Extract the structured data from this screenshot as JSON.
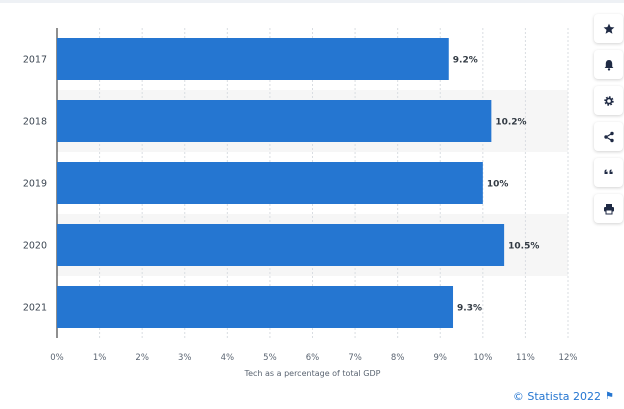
{
  "chart_data": {
    "type": "bar",
    "orientation": "horizontal",
    "categories": [
      "2017",
      "2018",
      "2019",
      "2020",
      "2021"
    ],
    "values": [
      9.2,
      10.2,
      10.0,
      10.5,
      9.3
    ],
    "value_labels": [
      "9.2%",
      "10.2%",
      "10%",
      "10.5%",
      "9.3%"
    ],
    "xlabel": "Tech as a percentage of total GDP",
    "ylabel": "",
    "xlim": [
      0,
      12
    ],
    "x_ticks": [
      "0%",
      "1%",
      "2%",
      "3%",
      "4%",
      "5%",
      "6%",
      "7%",
      "8%",
      "9%",
      "10%",
      "11%",
      "12%"
    ],
    "bar_color": "#2576d1",
    "alternating_row_shading": true,
    "grid": "vertical dashed"
  },
  "toolbar": {
    "buttons": [
      {
        "name": "favorite-button",
        "icon": "star-icon"
      },
      {
        "name": "notification-button",
        "icon": "bell-icon"
      },
      {
        "name": "settings-button",
        "icon": "gear-icon"
      },
      {
        "name": "share-button",
        "icon": "share-icon"
      },
      {
        "name": "cite-button",
        "icon": "quote-icon"
      },
      {
        "name": "print-button",
        "icon": "print-icon"
      }
    ]
  },
  "credit": {
    "text": "© Statista 2022",
    "icon": "flag-icon",
    "color": "#2576d1"
  }
}
